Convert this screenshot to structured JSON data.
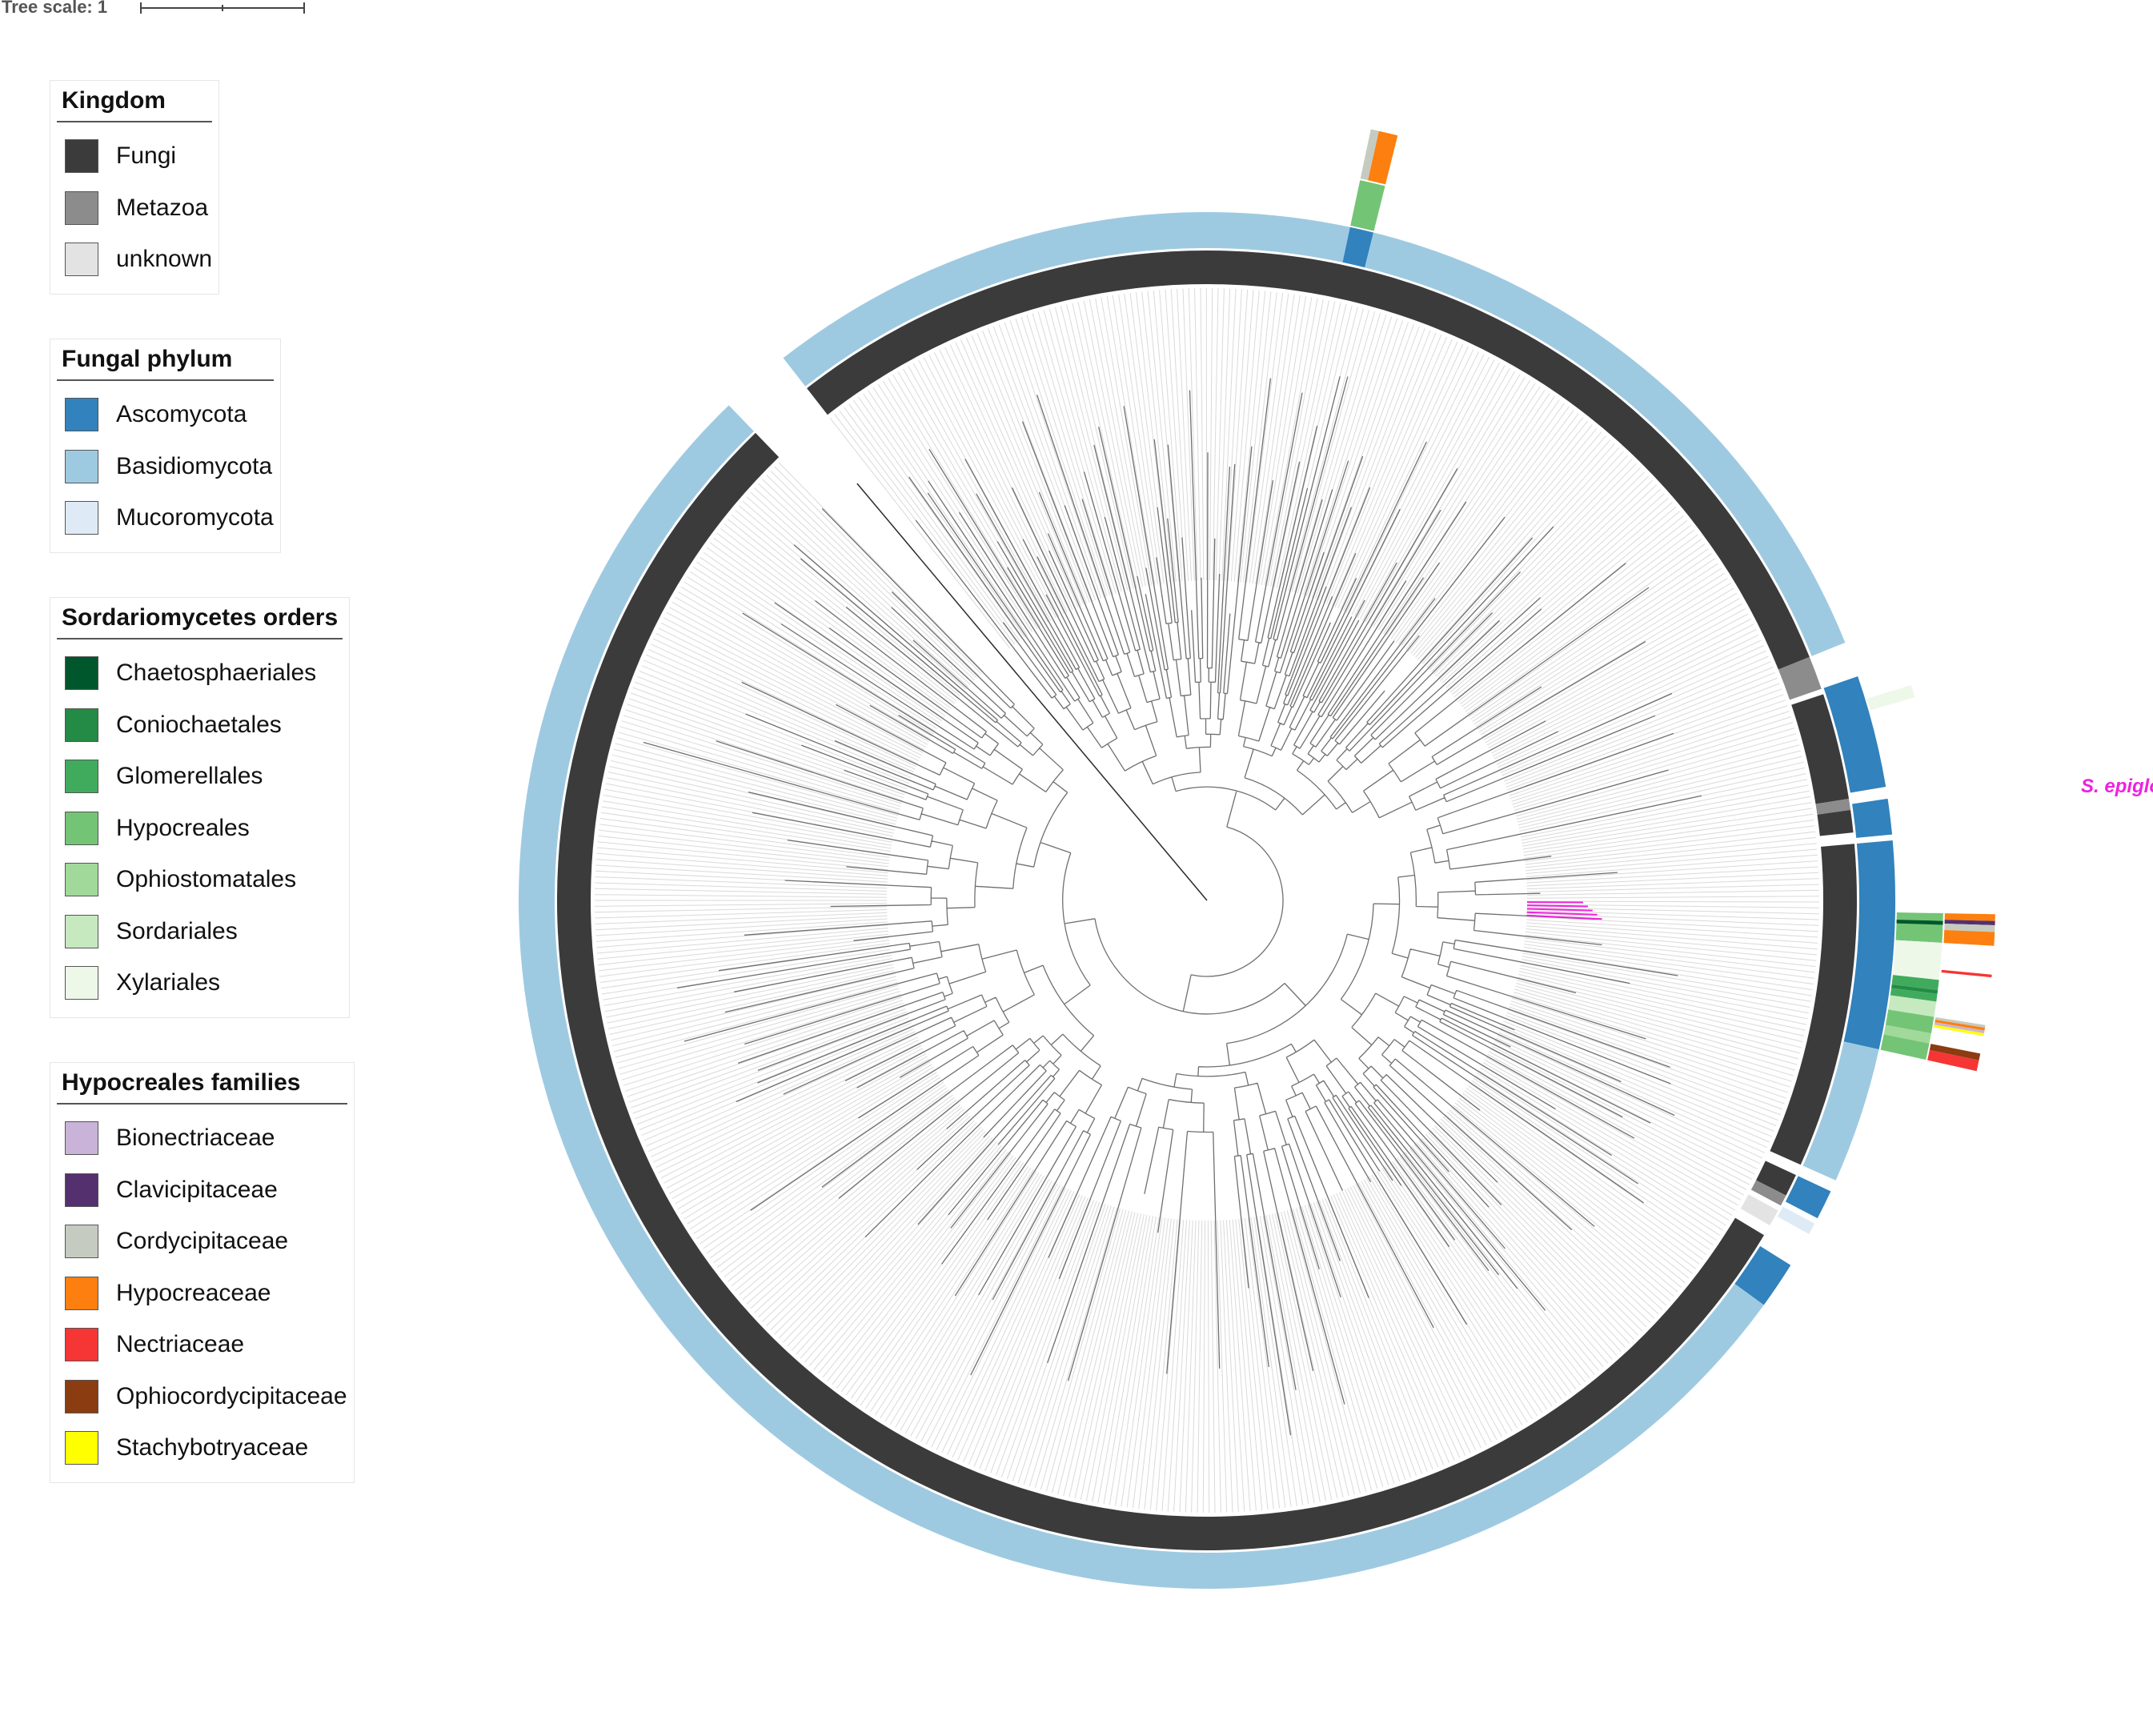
{
  "tree_scale": {
    "label": "Tree scale: 1"
  },
  "highlight_label": "S. epigloea",
  "colors": {
    "branch": "#6f6f6f",
    "branch_dark": "#2a2a2a",
    "highlight": "#ee22dd",
    "leaf_guide": "#d9d9d9"
  },
  "legends": [
    {
      "id": "kingdom",
      "title": "Kingdom",
      "items": [
        {
          "label": "Fungi",
          "color": "#3b3b3b"
        },
        {
          "label": "Metazoa",
          "color": "#8c8c8c"
        },
        {
          "label": "unknown",
          "color": "#e3e3e3"
        }
      ]
    },
    {
      "id": "phylum",
      "title": "Fungal phylum",
      "items": [
        {
          "label": "Ascomycota",
          "color": "#3182bd"
        },
        {
          "label": "Basidiomycota",
          "color": "#9ecae1"
        },
        {
          "label": "Mucoromycota",
          "color": "#deebf7"
        }
      ]
    },
    {
      "id": "orders",
      "title": "Sordariomycetes orders",
      "items": [
        {
          "label": "Chaetosphaeriales",
          "color": "#00572c"
        },
        {
          "label": "Coniochaetales",
          "color": "#238b45"
        },
        {
          "label": "Glomerellales",
          "color": "#41ab5d"
        },
        {
          "label": "Hypocreales",
          "color": "#74c476"
        },
        {
          "label": "Ophiostomatales",
          "color": "#a1d99b"
        },
        {
          "label": "Sordariales",
          "color": "#c7e9c0"
        },
        {
          "label": "Xylariales",
          "color": "#edf8e9"
        }
      ]
    },
    {
      "id": "families",
      "title": "Hypocreales families",
      "items": [
        {
          "label": "Bionectriaceae",
          "color": "#c9b3d8"
        },
        {
          "label": "Clavicipitaceae",
          "color": "#54306e"
        },
        {
          "label": "Cordycipitaceae",
          "color": "#c5cbc0"
        },
        {
          "label": "Hypocreaceae",
          "color": "#fd7f0f"
        },
        {
          "label": "Nectriaceae",
          "color": "#f63535"
        },
        {
          "label": "Ophiocordycipitaceae",
          "color": "#8b3c10"
        },
        {
          "label": "Stachybotryaceae",
          "color": "#ffff00"
        }
      ]
    }
  ],
  "rings": {
    "kingdom": [
      {
        "from": -128,
        "to": -22,
        "category": "Fungi"
      },
      {
        "from": -22,
        "to": -19,
        "category": "Metazoa"
      },
      {
        "from": -18.5,
        "to": -9,
        "category": "Fungi"
      },
      {
        "from": -9,
        "to": -8,
        "category": "Metazoa"
      },
      {
        "from": -8,
        "to": -6,
        "category": "Fungi"
      },
      {
        "from": -5,
        "to": 24,
        "category": "Fungi"
      },
      {
        "from": 25,
        "to": 27,
        "category": "Fungi"
      },
      {
        "from": 27,
        "to": 28,
        "category": "Metazoa"
      },
      {
        "from": 28.5,
        "to": 30,
        "category": "unknown"
      },
      {
        "from": 31,
        "to": 226,
        "category": "Fungi"
      }
    ],
    "phylum": [
      {
        "from": -128,
        "to": -78,
        "category": "Basidiomycota"
      },
      {
        "from": -78,
        "to": -76,
        "category": "Ascomycota"
      },
      {
        "from": -76,
        "to": -22,
        "category": "Basidiomycota"
      },
      {
        "from": -19,
        "to": -9.5,
        "category": "Ascomycota"
      },
      {
        "from": -8.5,
        "to": -5.5,
        "category": "Ascomycota"
      },
      {
        "from": -5,
        "to": 12.5,
        "category": "Ascomycota"
      },
      {
        "from": 12.5,
        "to": 24,
        "category": "Basidiomycota"
      },
      {
        "from": 25,
        "to": 27.5,
        "category": "Ascomycota"
      },
      {
        "from": 28,
        "to": 29,
        "category": "Mucoromycota"
      },
      {
        "from": 32,
        "to": 36,
        "category": "Ascomycota"
      },
      {
        "from": 36,
        "to": 226,
        "category": "Basidiomycota"
      }
    ],
    "orders": [
      {
        "from": -78,
        "to": -76,
        "category": "Hypocreales"
      },
      {
        "from": -17,
        "to": -16,
        "category": "Xylariales"
      },
      {
        "from": 1,
        "to": 3.3,
        "category": "Hypocreales"
      },
      {
        "from": 1.6,
        "to": 1.9,
        "category": "Chaetosphaeriales"
      },
      {
        "from": 3.3,
        "to": 6.2,
        "category": "Xylariales"
      },
      {
        "from": 6.2,
        "to": 7.0,
        "category": "Glomerellales"
      },
      {
        "from": 7.0,
        "to": 7.3,
        "category": "Coniochaetales"
      },
      {
        "from": 7.3,
        "to": 7.9,
        "category": "Glomerellales"
      },
      {
        "from": 7.9,
        "to": 9.1,
        "category": "Sordariales"
      },
      {
        "from": 9.1,
        "to": 10.4,
        "category": "Hypocreales"
      },
      {
        "from": 10.4,
        "to": 11.2,
        "category": "Ophiostomatales"
      },
      {
        "from": 11.2,
        "to": 12.5,
        "category": "Hypocreales"
      }
    ],
    "families": [
      {
        "from": -78,
        "to": -77.4,
        "category": "Cordycipitaceae"
      },
      {
        "from": -77.4,
        "to": -76,
        "category": "Hypocreaceae"
      },
      {
        "from": 1,
        "to": 1.5,
        "category": "Hypocreaceae"
      },
      {
        "from": 1.5,
        "to": 1.8,
        "category": "Clavicipitaceae"
      },
      {
        "from": 1.8,
        "to": 2.3,
        "category": "Cordycipitaceae"
      },
      {
        "from": 2.3,
        "to": 3.3,
        "category": "Hypocreaceae"
      },
      {
        "from": 5.4,
        "to": 5.6,
        "category": "Nectriaceae"
      },
      {
        "from": 9.1,
        "to": 9.3,
        "category": "Cordycipitaceae"
      },
      {
        "from": 9.3,
        "to": 9.5,
        "category": "Hypocreaceae"
      },
      {
        "from": 9.5,
        "to": 9.7,
        "category": "Bionectriaceae"
      },
      {
        "from": 9.7,
        "to": 9.9,
        "category": "Stachybotryaceae"
      },
      {
        "from": 11.2,
        "to": 11.7,
        "category": "Ophiocordycipitaceae"
      },
      {
        "from": 11.7,
        "to": 12.5,
        "category": "Nectriaceae"
      }
    ]
  }
}
